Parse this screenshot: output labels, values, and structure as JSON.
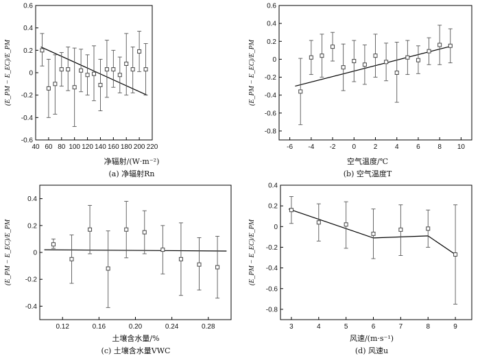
{
  "chart_data": [
    {
      "type": "scatter",
      "panel": "a",
      "caption": "(a) 净辐射Rn",
      "xlabel": "净辐射/(W·m⁻²)",
      "ylabel": "(E_PM − E_EC)/E_PM",
      "xlim": [
        40,
        220
      ],
      "ylim": [
        -0.6,
        0.6
      ],
      "xticks": [
        40,
        60,
        80,
        100,
        120,
        140,
        160,
        180,
        200,
        220
      ],
      "yticks": [
        -0.6,
        -0.4,
        -0.2,
        0,
        0.2,
        0.4,
        0.6
      ],
      "xtick_labels": [
        "40",
        "60",
        "80",
        "100",
        "120",
        "140",
        "160",
        "180",
        "200",
        "220"
      ],
      "ytick_labels": [
        "-0.6",
        "-0.4",
        "-0.2",
        "0",
        "0.2",
        "0.4",
        "0.6"
      ],
      "points": [
        {
          "x": 50,
          "y": 0.2,
          "lo": 0.06,
          "hi": 0.35
        },
        {
          "x": 60,
          "y": -0.14,
          "lo": -0.4,
          "hi": 0.12
        },
        {
          "x": 70,
          "y": -0.1,
          "lo": -0.37,
          "hi": 0.16
        },
        {
          "x": 80,
          "y": 0.03,
          "lo": -0.12,
          "hi": 0.18
        },
        {
          "x": 90,
          "y": 0.03,
          "lo": -0.16,
          "hi": 0.23
        },
        {
          "x": 100,
          "y": -0.13,
          "lo": -0.48,
          "hi": 0.22
        },
        {
          "x": 110,
          "y": 0.02,
          "lo": -0.17,
          "hi": 0.21
        },
        {
          "x": 120,
          "y": -0.02,
          "lo": -0.2,
          "hi": 0.16
        },
        {
          "x": 130,
          "y": -0.01,
          "lo": -0.25,
          "hi": 0.24
        },
        {
          "x": 140,
          "y": -0.11,
          "lo": -0.34,
          "hi": 0.12
        },
        {
          "x": 150,
          "y": 0.03,
          "lo": -0.22,
          "hi": 0.29
        },
        {
          "x": 160,
          "y": 0.03,
          "lo": -0.13,
          "hi": 0.2
        },
        {
          "x": 170,
          "y": -0.02,
          "lo": -0.18,
          "hi": 0.14
        },
        {
          "x": 180,
          "y": 0.08,
          "lo": -0.2,
          "hi": 0.35
        },
        {
          "x": 190,
          "y": 0.03,
          "lo": -0.18,
          "hi": 0.23
        },
        {
          "x": 200,
          "y": 0.19,
          "lo": 0.01,
          "hi": 0.37
        },
        {
          "x": 210,
          "y": 0.03,
          "lo": -0.2,
          "hi": 0.26
        }
      ],
      "fit_line": [
        [
          48,
          0.23
        ],
        [
          212,
          -0.2
        ]
      ]
    },
    {
      "type": "scatter",
      "panel": "b",
      "caption": "(b) 空气温度T",
      "xlabel": "空气温度/℃",
      "ylabel": "(E_PM − E_EC)/E_PM",
      "xlim": [
        -7,
        11
      ],
      "ylim": [
        -0.9,
        0.6
      ],
      "xticks": [
        -6,
        -4,
        -2,
        0,
        2,
        4,
        6,
        8,
        10
      ],
      "yticks": [
        -0.8,
        -0.6,
        -0.4,
        -0.2,
        0,
        0.2,
        0.4,
        0.6
      ],
      "xtick_labels": [
        "-6",
        "-4",
        "-2",
        "0",
        "2",
        "4",
        "6",
        "8",
        "10"
      ],
      "ytick_labels": [
        "-0.8",
        "-0.6",
        "-0.4",
        "-0.2",
        "0",
        "0.2",
        "0.4",
        "0.6"
      ],
      "points": [
        {
          "x": -5,
          "y": -0.36,
          "lo": -0.73,
          "hi": 0.01
        },
        {
          "x": -4,
          "y": 0.02,
          "lo": -0.17,
          "hi": 0.21
        },
        {
          "x": -3,
          "y": 0.04,
          "lo": -0.2,
          "hi": 0.28
        },
        {
          "x": -2,
          "y": 0.14,
          "lo": -0.02,
          "hi": 0.3
        },
        {
          "x": -1,
          "y": -0.09,
          "lo": -0.35,
          "hi": 0.17
        },
        {
          "x": 0,
          "y": -0.02,
          "lo": -0.25,
          "hi": 0.21
        },
        {
          "x": 1,
          "y": -0.06,
          "lo": -0.28,
          "hi": 0.16
        },
        {
          "x": 2,
          "y": 0.04,
          "lo": -0.2,
          "hi": 0.28
        },
        {
          "x": 3,
          "y": -0.03,
          "lo": -0.24,
          "hi": 0.18
        },
        {
          "x": 4,
          "y": -0.15,
          "lo": -0.48,
          "hi": 0.19
        },
        {
          "x": 5,
          "y": 0.02,
          "lo": -0.17,
          "hi": 0.21
        },
        {
          "x": 6,
          "y": -0.01,
          "lo": -0.16,
          "hi": 0.15
        },
        {
          "x": 7,
          "y": 0.09,
          "lo": -0.06,
          "hi": 0.24
        },
        {
          "x": 8,
          "y": 0.16,
          "lo": -0.06,
          "hi": 0.38
        },
        {
          "x": 9,
          "y": 0.15,
          "lo": -0.04,
          "hi": 0.34
        }
      ],
      "fit_line": [
        [
          -5.5,
          -0.3
        ],
        [
          9.2,
          0.15
        ]
      ]
    },
    {
      "type": "scatter",
      "panel": "c",
      "caption": "(c) 土壤含水量VWC",
      "xlabel": "土壤含水量/%",
      "ylabel": "(E_PM − E_EC)/E_PM",
      "xlim": [
        0.095,
        0.305
      ],
      "ylim": [
        -0.5,
        0.5
      ],
      "xticks": [
        0.12,
        0.16,
        0.2,
        0.24,
        0.28
      ],
      "yticks": [
        -0.4,
        -0.2,
        0,
        0.2,
        0.4
      ],
      "xtick_labels": [
        "0.12",
        "0.16",
        "0.20",
        "0.24",
        "0.28"
      ],
      "ytick_labels": [
        "-0.4",
        "-0.2",
        "0",
        "0.2",
        "0.4"
      ],
      "points": [
        {
          "x": 0.11,
          "y": 0.06,
          "lo": 0.03,
          "hi": 0.1
        },
        {
          "x": 0.13,
          "y": -0.05,
          "lo": -0.23,
          "hi": 0.13
        },
        {
          "x": 0.15,
          "y": 0.17,
          "lo": -0.01,
          "hi": 0.35
        },
        {
          "x": 0.17,
          "y": -0.12,
          "lo": -0.41,
          "hi": 0.16
        },
        {
          "x": 0.19,
          "y": 0.17,
          "lo": -0.04,
          "hi": 0.38
        },
        {
          "x": 0.21,
          "y": 0.15,
          "lo": -0.01,
          "hi": 0.31
        },
        {
          "x": 0.23,
          "y": 0.02,
          "lo": -0.16,
          "hi": 0.2
        },
        {
          "x": 0.25,
          "y": -0.05,
          "lo": -0.32,
          "hi": 0.22
        },
        {
          "x": 0.27,
          "y": -0.09,
          "lo": -0.28,
          "hi": 0.11
        },
        {
          "x": 0.29,
          "y": -0.11,
          "lo": -0.34,
          "hi": 0.12
        }
      ],
      "fit_line": [
        [
          0.1,
          0.02
        ],
        [
          0.3,
          0.01
        ]
      ]
    },
    {
      "type": "scatter",
      "panel": "d",
      "caption": "(d) 风速u",
      "xlabel": "风速/(m·s⁻¹)",
      "ylabel": "(E_PM − E_EC)/E_PM",
      "xlim": [
        2.6,
        9.6
      ],
      "ylim": [
        -0.9,
        0.4
      ],
      "xticks": [
        3,
        4,
        5,
        6,
        7,
        8,
        9
      ],
      "yticks": [
        -0.8,
        -0.6,
        -0.4,
        -0.2,
        0,
        0.2,
        0.4
      ],
      "xtick_labels": [
        "3",
        "4",
        "5",
        "6",
        "7",
        "8",
        "9"
      ],
      "ytick_labels": [
        "-0.8",
        "-0.6",
        "-0.4",
        "-0.2",
        "0",
        "0.2",
        "0.4"
      ],
      "points": [
        {
          "x": 3,
          "y": 0.16,
          "lo": 0.03,
          "hi": 0.29
        },
        {
          "x": 4,
          "y": 0.04,
          "lo": -0.14,
          "hi": 0.22
        },
        {
          "x": 5,
          "y": 0.02,
          "lo": -0.21,
          "hi": 0.24
        },
        {
          "x": 6,
          "y": -0.07,
          "lo": -0.31,
          "hi": 0.17
        },
        {
          "x": 7,
          "y": -0.03,
          "lo": -0.28,
          "hi": 0.21
        },
        {
          "x": 8,
          "y": -0.02,
          "lo": -0.2,
          "hi": 0.16
        },
        {
          "x": 9,
          "y": -0.27,
          "lo": -0.75,
          "hi": 0.21
        }
      ],
      "fit_line": [
        [
          2.9,
          0.17
        ],
        [
          6.0,
          -0.11
        ],
        [
          8.0,
          -0.09
        ],
        [
          9.0,
          -0.27
        ]
      ]
    }
  ]
}
